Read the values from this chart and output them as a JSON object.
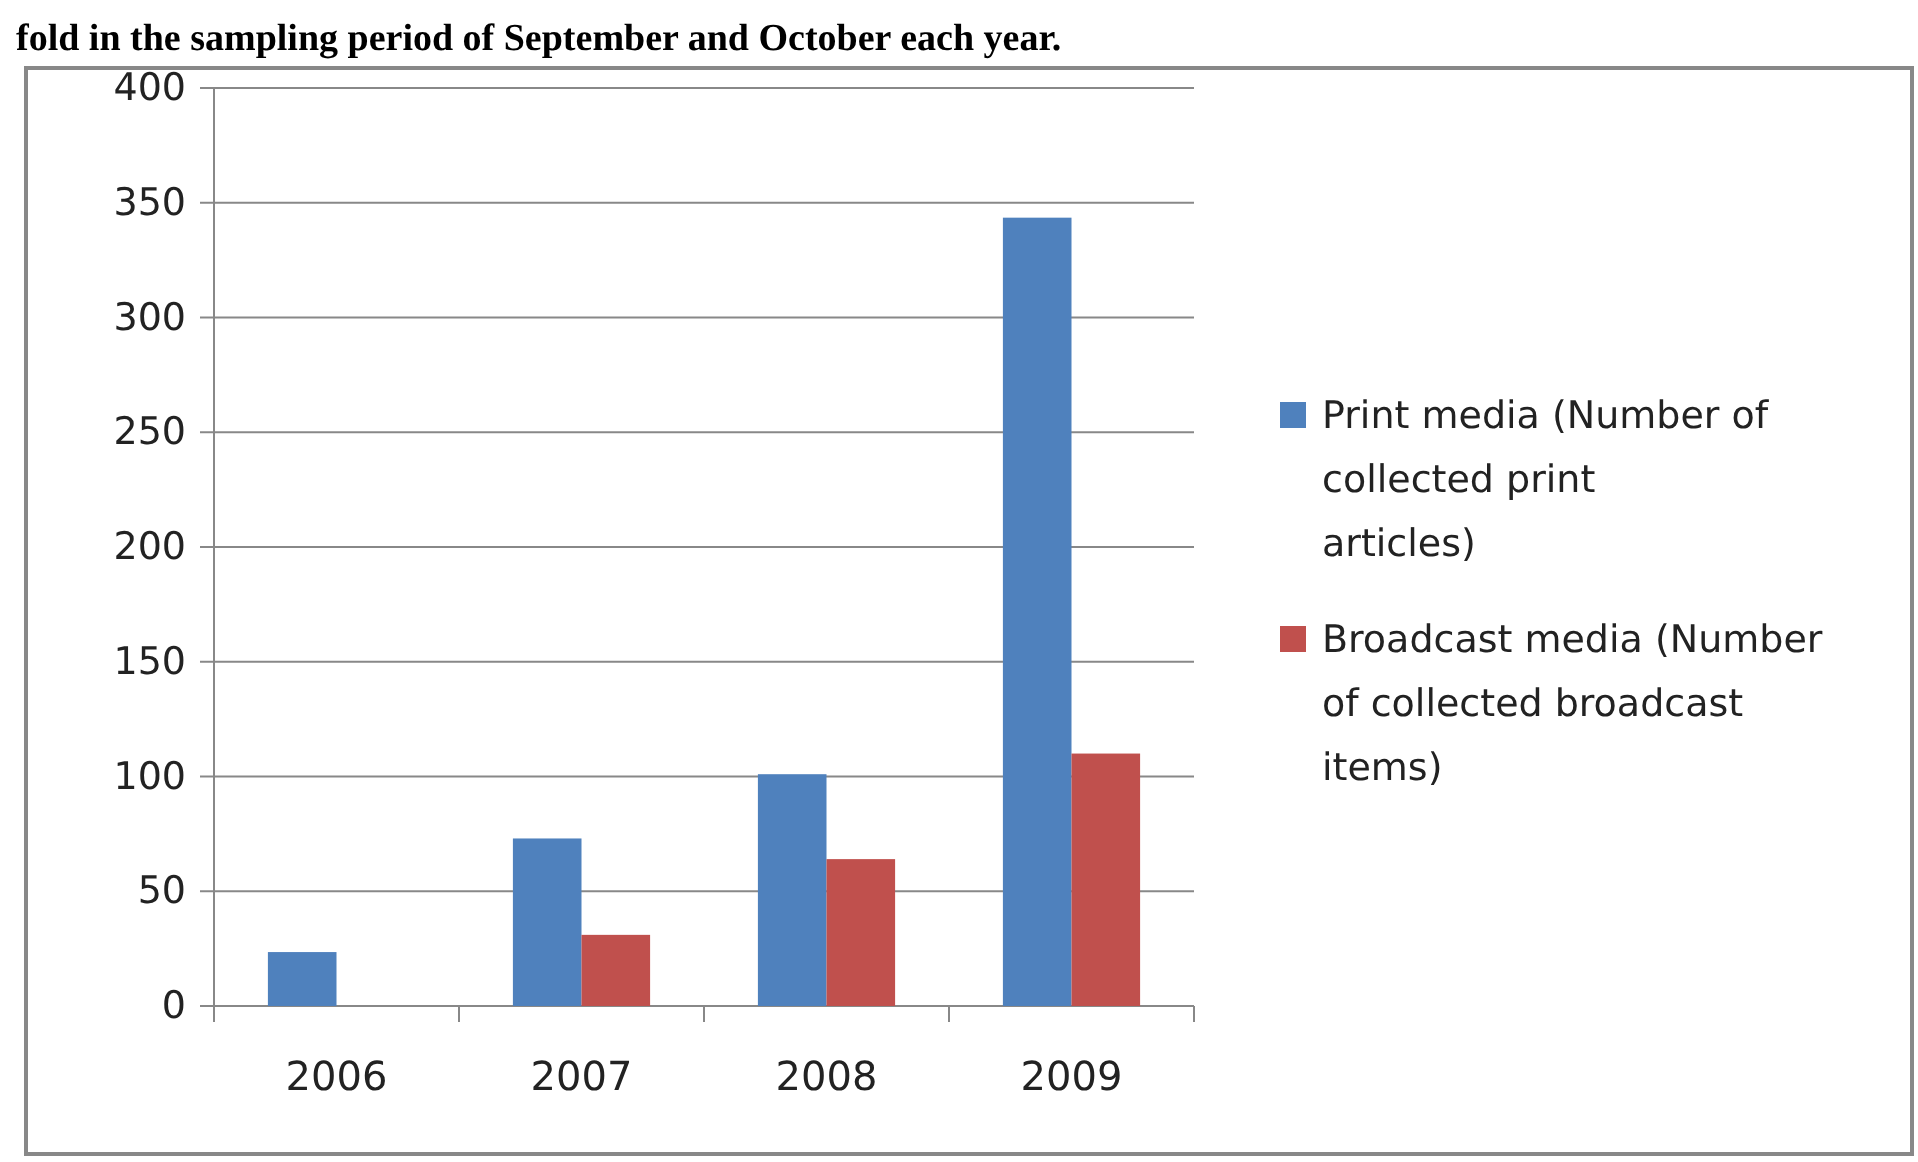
{
  "chart_data": {
    "type": "bar",
    "title": "fold in the sampling period of September and October each year.",
    "categories": [
      "2006",
      "2007",
      "2008",
      "2009"
    ],
    "series": [
      {
        "name": "Print media (Number of collected print articles)",
        "color": "#4f81bd",
        "values": [
          23.5,
          73,
          101,
          343.5
        ]
      },
      {
        "name": "Broadcast media (Number of collected broadcast items)",
        "color": "#c0504d",
        "values": [
          0,
          31,
          64,
          110
        ]
      }
    ],
    "ylim": [
      0,
      400
    ],
    "yticks": [
      0,
      50,
      100,
      150,
      200,
      250,
      300,
      350,
      400
    ],
    "grid": "y",
    "legend": "right"
  }
}
